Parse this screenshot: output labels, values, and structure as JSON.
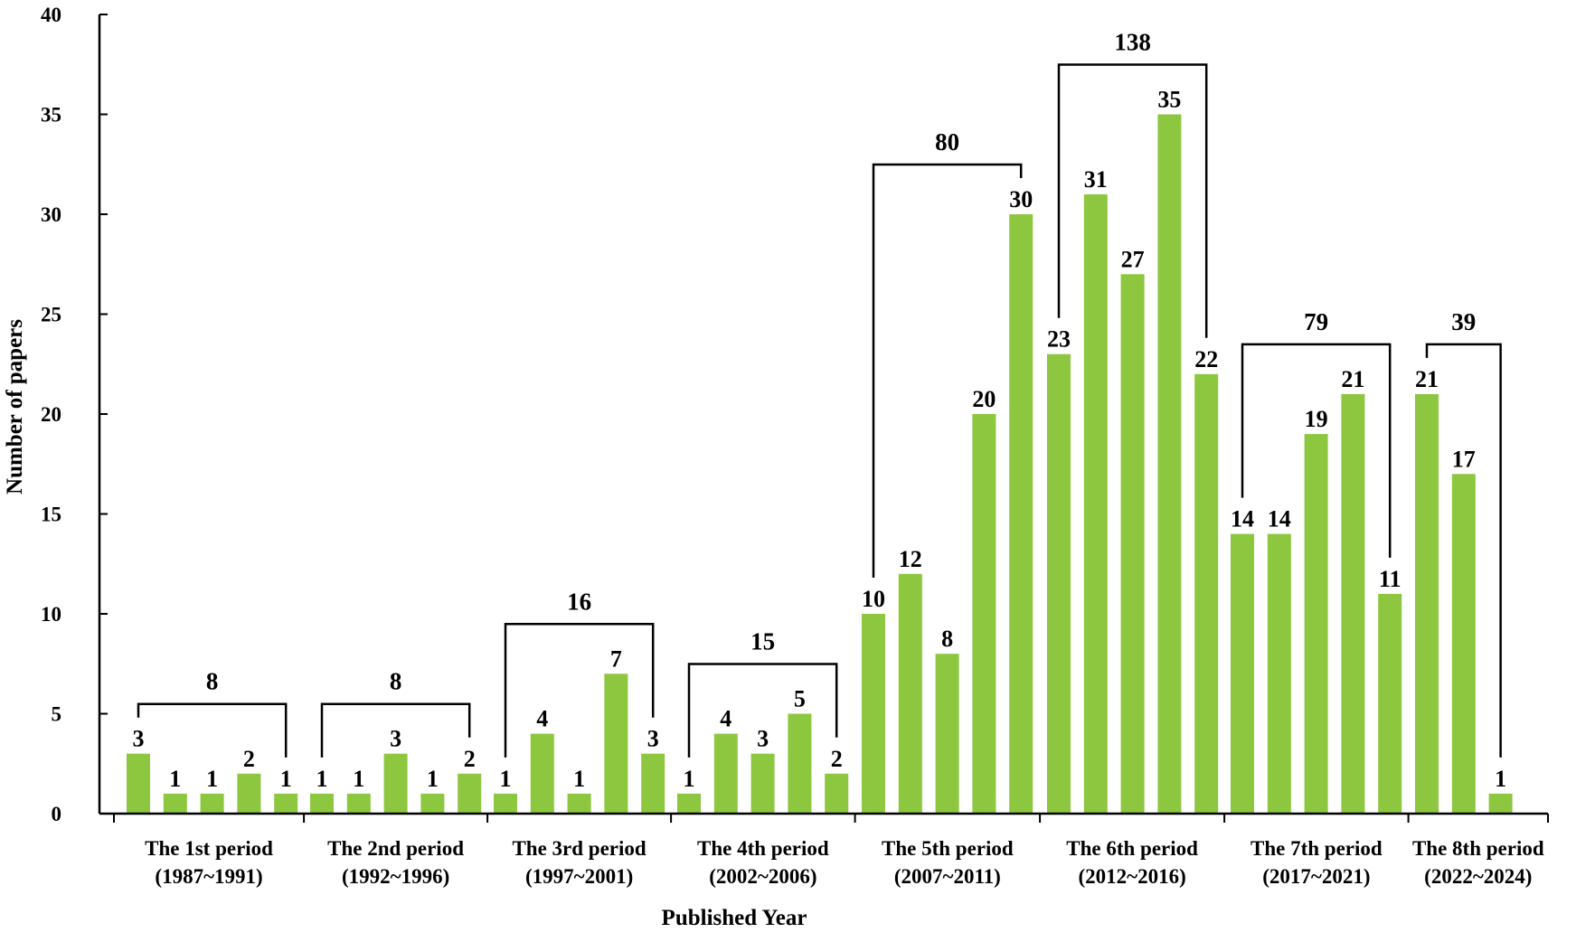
{
  "chart_data": {
    "type": "bar",
    "xlabel": "Published Year",
    "ylabel": "Number of papers",
    "ylim": [
      0,
      40
    ],
    "yticks": [
      0,
      5,
      10,
      15,
      20,
      25,
      30,
      35,
      40
    ],
    "grid": false,
    "legend": "none",
    "colors": {
      "bar": "#8DC63F",
      "axis": "#000000",
      "bracket": "#000000"
    },
    "groups": [
      {
        "label": "The 1st period",
        "years": "(1987~1991)",
        "values": [
          3,
          1,
          1,
          2,
          1
        ],
        "total": "8"
      },
      {
        "label": "The 2nd period",
        "years": "(1992~1996)",
        "values": [
          1,
          1,
          3,
          1,
          2
        ],
        "total": "8"
      },
      {
        "label": "The 3rd period",
        "years": "(1997~2001)",
        "values": [
          1,
          4,
          1,
          7,
          3
        ],
        "total": "16"
      },
      {
        "label": "The 4th period",
        "years": "(2002~2006)",
        "values": [
          1,
          4,
          3,
          5,
          2
        ],
        "total": "15"
      },
      {
        "label": "The 5th period",
        "years": "(2007~2011)",
        "values": [
          10,
          12,
          8,
          20,
          30
        ],
        "total": "80"
      },
      {
        "label": "The 6th period",
        "years": "(2012~2016)",
        "values": [
          23,
          31,
          27,
          35,
          22
        ],
        "total": "138"
      },
      {
        "label": "The 7th period",
        "years": "(2017~2021)",
        "values": [
          14,
          14,
          19,
          21,
          11
        ],
        "total": "79"
      },
      {
        "label": "The 8th period",
        "years": "(2022~2024)",
        "values": [
          21,
          17,
          1
        ],
        "total": "39"
      }
    ]
  }
}
